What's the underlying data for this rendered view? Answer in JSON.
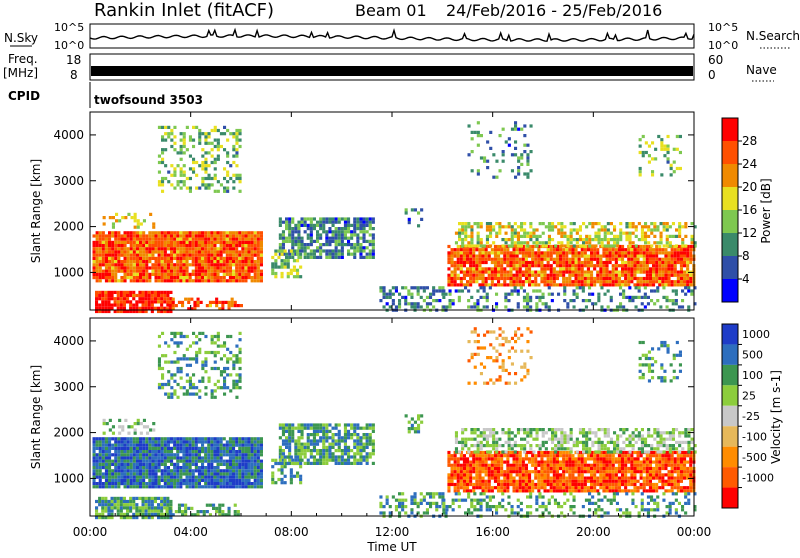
{
  "header": {
    "station": "Rankin Inlet (fitACF)",
    "beam": "Beam 01",
    "date_range": "24/Feb/2016 - 25/Feb/2016"
  },
  "top_panels": {
    "nsky_label": "N.Sky",
    "nsearch_label": "N.Search",
    "nsky_ticks": [
      "10^5",
      "10^0"
    ],
    "nsearch_ticks": [
      "10^5",
      "10^0"
    ],
    "freq_label_1": "Freq.",
    "freq_label_2": "[MHz]",
    "freq_ticks": [
      "18",
      "8"
    ],
    "nave_label": "Nave",
    "nave_ticks": [
      "60",
      "0"
    ],
    "cpid_label": "CPID",
    "cpid_value": "twofsound 3503"
  },
  "colors": {
    "power_scale": [
      "#0000ff",
      "#2f4fa8",
      "#3a8a6a",
      "#7ec850",
      "#e8e020",
      "#f08a00",
      "#ff5000",
      "#ff0000"
    ],
    "velocity_scale": [
      "#ff0000",
      "#ff5a00",
      "#ff8c00",
      "#e6b85a",
      "#c8c8c8",
      "#8ccd3c",
      "#3c9650",
      "#2d6ebe",
      "#1e3cc8"
    ]
  },
  "chart_data": [
    {
      "type": "heatmap",
      "panel": "power",
      "ylabel": "Slant Range [km]",
      "yticks": [
        "1000",
        "2000",
        "3000",
        "4000"
      ],
      "ylim": [
        180,
        4500
      ],
      "xlim_hours": [
        0,
        24
      ],
      "colorbar_label": "Power [dB]",
      "colorbar_ticks": [
        "4",
        "8",
        "12",
        "16",
        "20",
        "24",
        "28"
      ]
    },
    {
      "type": "heatmap",
      "panel": "velocity",
      "ylabel": "Slant Range [km]",
      "yticks": [
        "1000",
        "2000",
        "3000",
        "4000"
      ],
      "ylim": [
        180,
        4500
      ],
      "xlim_hours": [
        0,
        24
      ],
      "colorbar_label": "Velocity [m s-1]",
      "colorbar_ticks": [
        "1000",
        "500",
        "100",
        "25",
        "-25",
        "-100",
        "-500",
        "-1000"
      ]
    }
  ],
  "xaxis": {
    "ticks": [
      "00:00",
      "04:00",
      "08:00",
      "12:00",
      "16:00",
      "20:00",
      "00:00"
    ],
    "label": "Time UT"
  }
}
